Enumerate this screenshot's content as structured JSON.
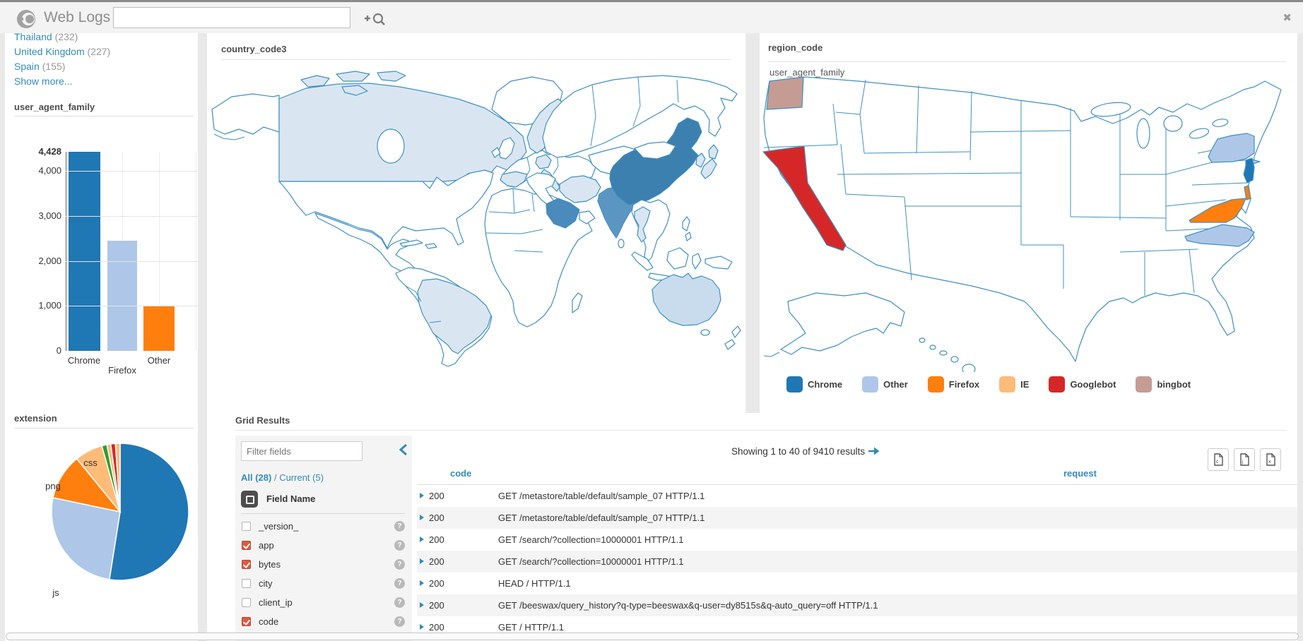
{
  "colors": {
    "chrome": "#1f77b4",
    "other": "#aec7e8",
    "firefox": "#ff7f0e",
    "ie": "#ffbb78",
    "googlebot": "#d62728",
    "bingbot": "#c49c94",
    "green": "#2ca02c",
    "link": "#338bb8",
    "map_low": "#d9e6f2",
    "map_low2": "#c9dcee",
    "map_mid": "#5b96c2",
    "map_midhigh": "#4a8abc",
    "map_high": "#3c80b0"
  },
  "topbar": {
    "title": "Web Logs",
    "search_value": "",
    "icons": [
      "hue-logo",
      "plus",
      "magnifier",
      "close"
    ]
  },
  "sidebar": {
    "facet_items": [
      {
        "label": "Thailand",
        "count": "(232)"
      },
      {
        "label": "United Kingdom",
        "count": "(227)"
      },
      {
        "label": "Spain",
        "count": "(155)"
      }
    ],
    "show_more": "Show more...",
    "user_agent_title": "user_agent_family",
    "extension_title": "extension"
  },
  "panels": {
    "world": {
      "title": "country_code3"
    },
    "us": {
      "title": "region_code",
      "subtitle": "user_agent_family"
    }
  },
  "legend": {
    "items": [
      {
        "label": "Chrome",
        "color": "#1f77b4"
      },
      {
        "label": "Other",
        "color": "#aec7e8"
      },
      {
        "label": "Firefox",
        "color": "#ff7f0e"
      },
      {
        "label": "IE",
        "color": "#ffbb78"
      },
      {
        "label": "Googlebot",
        "color": "#d62728"
      },
      {
        "label": "bingbot",
        "color": "#c49c94"
      }
    ]
  },
  "chart_data": [
    {
      "type": "bar",
      "title": "user_agent_family",
      "categories": [
        "Chrome",
        "Firefox",
        "Other"
      ],
      "values": [
        4428,
        2450,
        1000
      ],
      "ylim": [
        0,
        4428
      ],
      "yticks": [
        {
          "value": 4428,
          "label": "4,428",
          "bold": true
        },
        {
          "value": 4000,
          "label": "4,000"
        },
        {
          "value": 3000,
          "label": "3,000"
        },
        {
          "value": 2000,
          "label": "2,000"
        },
        {
          "value": 1000,
          "label": "1,000"
        },
        {
          "value": 0,
          "label": "0"
        }
      ],
      "grid": true,
      "legend_position": "none"
    },
    {
      "type": "pie",
      "title": "extension",
      "slices": [
        {
          "label": "",
          "color": "chrome",
          "pct": 52.5
        },
        {
          "label": "js",
          "color": "other",
          "pct": 25.8
        },
        {
          "label": "png",
          "color": "firefox",
          "pct": 10.8
        },
        {
          "label": "css",
          "color": "ie",
          "pct": 6.6
        },
        {
          "label": "",
          "color": "green",
          "pct": 1.2
        },
        {
          "label": "",
          "color": "ie",
          "pct": 0.9
        },
        {
          "label": "",
          "color": "googlebot",
          "pct": 1.1
        },
        {
          "label": "",
          "color": "ie",
          "pct": 1.1
        }
      ]
    },
    {
      "type": "heatmap",
      "subtype": "world-choropleth",
      "title": "country_code3",
      "regions": [
        {
          "name": "Canada",
          "level": "low"
        },
        {
          "name": "Brazil",
          "level": "low"
        },
        {
          "name": "Spain",
          "level": "low"
        },
        {
          "name": "Norway/Sweden",
          "level": "low"
        },
        {
          "name": "Germany",
          "level": "low"
        },
        {
          "name": "Italy",
          "level": "low"
        },
        {
          "name": "Iran",
          "level": "low"
        },
        {
          "name": "Thailand",
          "level": "low"
        },
        {
          "name": "Japan",
          "level": "low"
        },
        {
          "name": "South Korea",
          "level": "low"
        },
        {
          "name": "Australia",
          "level": "low2"
        },
        {
          "name": "India",
          "level": "mid"
        },
        {
          "name": "Saudi Arabia",
          "level": "midhigh"
        },
        {
          "name": "China",
          "level": "high"
        },
        {
          "name": "Iceland",
          "level": "high"
        }
      ]
    },
    {
      "type": "heatmap",
      "subtype": "us-states-choropleth",
      "title": "region_code",
      "color_by": "user_agent_family",
      "states": [
        {
          "name": "California",
          "category": "Googlebot"
        },
        {
          "name": "Washington",
          "category": "bingbot"
        },
        {
          "name": "New York",
          "category": "Other"
        },
        {
          "name": "North Carolina",
          "category": "Other"
        },
        {
          "name": "New Jersey",
          "category": "Chrome"
        },
        {
          "name": "Virginia",
          "category": "Firefox"
        },
        {
          "name": "Delaware",
          "category": "Firefox"
        }
      ],
      "legend": [
        "Chrome",
        "Other",
        "Firefox",
        "IE",
        "Googlebot",
        "bingbot"
      ]
    }
  ],
  "grid": {
    "title": "Grid Results",
    "fields": {
      "filter_placeholder": "Filter fields",
      "all_label": "All (28)",
      "separator": " / ",
      "current_label": "Current (5)",
      "header": "Field Name",
      "items": [
        {
          "name": "_version_",
          "checked": false
        },
        {
          "name": "app",
          "checked": true
        },
        {
          "name": "bytes",
          "checked": true
        },
        {
          "name": "city",
          "checked": false
        },
        {
          "name": "client_ip",
          "checked": false
        },
        {
          "name": "code",
          "checked": true
        }
      ]
    },
    "table": {
      "showing": "Showing 1 to 40 of 9410 results",
      "columns": [
        "code",
        "request"
      ],
      "rows": [
        {
          "code": "200",
          "request": "GET /metastore/table/default/sample_07 HTTP/1.1"
        },
        {
          "code": "200",
          "request": "GET /metastore/table/default/sample_07 HTTP/1.1"
        },
        {
          "code": "200",
          "request": "GET /search/?collection=10000001 HTTP/1.1"
        },
        {
          "code": "200",
          "request": "GET /search/?collection=10000001 HTTP/1.1"
        },
        {
          "code": "200",
          "request": "HEAD / HTTP/1.1"
        },
        {
          "code": "200",
          "request": "GET /beeswax/query_history?q-type=beeswax&q-user=dy8515s&q-auto_query=off HTTP/1.1"
        },
        {
          "code": "200",
          "request": "GET / HTTP/1.1"
        }
      ]
    },
    "export_buttons": [
      "download-csv",
      "download-xls",
      "download-json"
    ]
  }
}
